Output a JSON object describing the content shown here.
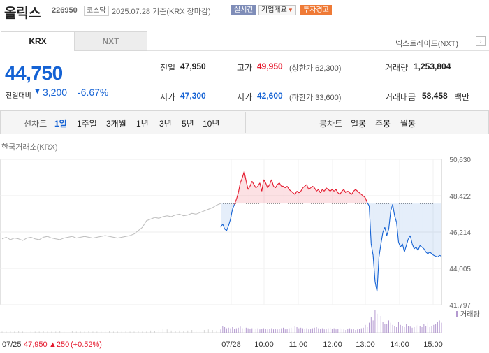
{
  "header": {
    "stock_name": "올릭스",
    "stock_code": "226950",
    "market_badge": "코스닥",
    "base_date": "2025.07.28 기준(KRX 장마감)",
    "realtime_badge": "실시간",
    "company_menu": "기업개요",
    "warning_badge": "투자경고"
  },
  "tabs": {
    "krx": "KRX",
    "nxt": "NXT",
    "nextrade_link": "넥스트레이드(NXT)"
  },
  "price": {
    "current": "44,750",
    "change_label": "전일대비",
    "change_amount": "3,200",
    "change_rate": "-6.67%"
  },
  "stats": {
    "prev_close": {
      "label": "전일",
      "value": "47,950"
    },
    "high": {
      "label": "고가",
      "value": "49,950",
      "sub": "(상한가 62,300)"
    },
    "volume": {
      "label": "거래량",
      "value": "1,253,804"
    },
    "open": {
      "label": "시가",
      "value": "47,300"
    },
    "low": {
      "label": "저가",
      "value": "42,600",
      "sub": "(하한가 33,600)"
    },
    "trade_amount": {
      "label": "거래대금",
      "value": "58,458",
      "unit": "백만"
    }
  },
  "periods": {
    "line_label": "선차트",
    "line_items": [
      "1일",
      "1주일",
      "3개월",
      "1년",
      "3년",
      "5년",
      "10년"
    ],
    "active": "1일",
    "candle_label": "봉차트",
    "candle_items": [
      "일봉",
      "주봉",
      "월봉"
    ]
  },
  "exchange_label": "한국거래소(KRX)",
  "colors": {
    "up": "#e4172b",
    "down": "#1462d4",
    "prev_day_line": "#bdbdbd",
    "volume_bar": "#b49ad0"
  },
  "chart_data": {
    "type": "line",
    "y_ticks": [
      "50,630",
      "48,422",
      "46,214",
      "44,005",
      "41,797"
    ],
    "ylim": [
      41797,
      50630
    ],
    "baseline": 47950,
    "x_ticks": [
      "07/28",
      "10:00",
      "11:00",
      "12:00",
      "13:00",
      "14:00",
      "15:00"
    ],
    "volume_label": "거래량",
    "prev_day": {
      "date": "07/25",
      "close": "47,950",
      "change": "▲250",
      "change_rate": "(+0.52%)",
      "values": [
        45800,
        45900,
        45750,
        45850,
        45800,
        45700,
        45850,
        45900,
        45800,
        45750,
        45900,
        45950,
        45850,
        45800,
        45750,
        45850,
        45900,
        45950,
        45850,
        45900,
        45950,
        45900,
        45850,
        45900,
        45950,
        46000,
        45950,
        45900,
        45850,
        45900,
        45950,
        46000,
        46100,
        46300,
        46500,
        46900,
        47000,
        47100,
        47050,
        47150,
        47200,
        47150,
        47250,
        47300,
        47200,
        47250,
        47350,
        47300,
        47400,
        47500,
        47600,
        47700,
        47850,
        47950
      ]
    },
    "today": {
      "values": [
        46500,
        46700,
        46400,
        46300,
        46600,
        47000,
        47600,
        47900,
        48200,
        48600,
        49200,
        49500,
        49900,
        49300,
        48800,
        49000,
        49300,
        49100,
        48900,
        49000,
        49200,
        48700,
        49400,
        49200,
        48900,
        49100,
        49400,
        49000,
        48900,
        49100,
        49200,
        49000,
        49000,
        48900,
        49000,
        48800,
        48700,
        48600,
        48500,
        48700,
        48600,
        48700,
        48900,
        49000,
        49100,
        48800,
        48900,
        49000,
        48900,
        48700,
        48800,
        48600,
        48800,
        48700,
        48900,
        48800,
        48700,
        48800,
        48700,
        48800,
        48600,
        48500,
        48700,
        48800,
        48600,
        48700,
        48600,
        48500,
        48700,
        48800,
        48700,
        48600,
        48500,
        48400,
        48300,
        48000,
        47800,
        45500,
        44800,
        43200,
        42600,
        44700,
        45500,
        46200,
        46500,
        46000,
        46400,
        47500,
        47900,
        47200,
        46800,
        45600,
        45300,
        45500,
        45000,
        45400,
        45800,
        46000,
        45500,
        45200,
        45300,
        45100,
        45400,
        45300,
        45200,
        45000,
        44900,
        45000,
        44900,
        44800,
        44750,
        44700,
        44800,
        44750
      ]
    },
    "prev_volume": [
      2,
      2,
      3,
      2,
      3,
      2,
      2,
      3,
      2,
      2,
      3,
      2,
      2,
      2,
      3,
      2,
      2,
      3,
      2,
      2,
      2,
      3,
      2,
      2,
      2,
      2,
      3,
      2,
      2,
      2,
      3,
      2,
      2,
      3,
      2,
      2,
      4,
      3,
      5,
      7,
      6,
      4,
      3,
      4,
      3,
      4,
      5,
      3,
      4,
      5,
      6,
      5,
      4,
      5
    ],
    "today_volume": [
      6,
      12,
      10,
      8,
      9,
      8,
      10,
      7,
      8,
      9,
      11,
      8,
      7,
      9,
      8,
      7,
      8,
      6,
      7,
      8,
      6,
      7,
      8,
      7,
      6,
      7,
      8,
      6,
      7,
      6,
      7,
      8,
      9,
      6,
      7,
      8,
      9,
      7,
      12,
      10,
      8,
      9,
      8,
      7,
      8,
      6,
      7,
      8,
      9,
      10,
      8,
      7,
      8,
      6,
      7,
      8,
      9,
      7,
      8,
      6,
      7,
      8,
      7,
      6,
      5,
      7,
      8,
      6,
      7,
      5,
      6,
      7,
      8,
      9,
      14,
      10,
      18,
      28,
      22,
      40,
      34,
      25,
      30,
      20,
      16,
      15,
      22,
      18,
      14,
      12,
      10,
      20,
      14,
      12,
      10,
      15,
      12,
      11,
      9,
      10,
      13,
      14,
      12,
      10,
      16,
      12,
      18,
      10,
      12,
      14,
      16,
      20,
      22,
      18
    ]
  }
}
